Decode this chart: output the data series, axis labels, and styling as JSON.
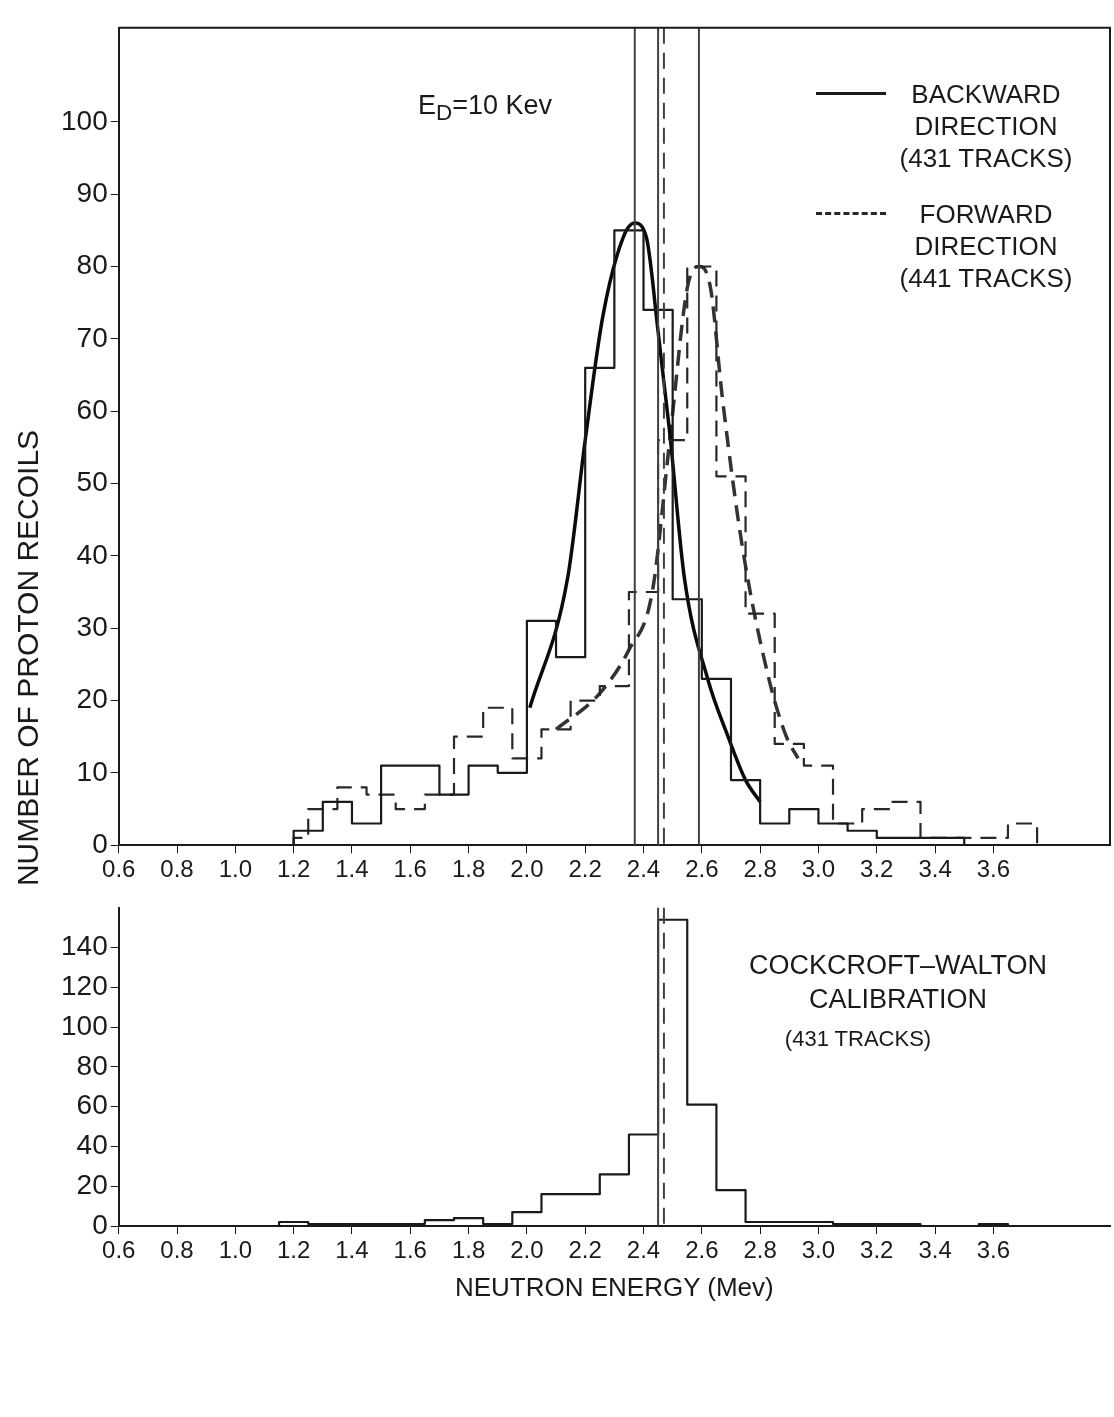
{
  "chart_data": [
    {
      "type": "histogram",
      "ylabel": "NUMBER OF PROTON RECOILS",
      "annotations": [
        "E$_{D}$=10 Kev"
      ],
      "bins": [
        1.2,
        1.25,
        1.3,
        1.35,
        1.4,
        1.45,
        1.5,
        1.55,
        1.6,
        1.65,
        1.7,
        1.75,
        1.8,
        1.85,
        1.9,
        1.95,
        2.0,
        2.05,
        2.1,
        2.15,
        2.2,
        2.25,
        2.3,
        2.35,
        2.4,
        2.45,
        2.5,
        2.55,
        2.6,
        2.65,
        2.7,
        2.75,
        2.8,
        2.85,
        2.9,
        2.95,
        3.0,
        3.05,
        3.1,
        3.15,
        3.2,
        3.25,
        3.3,
        3.35,
        3.4,
        3.45,
        3.5,
        3.55,
        3.6,
        3.65,
        3.7,
        3.75
      ],
      "xlim": [
        0.6,
        4.0
      ],
      "xticks": [
        0.6,
        0.8,
        {
          "value": 1,
          "label": "1.0"
        },
        1.2,
        1.4,
        1.6,
        1.8,
        {
          "value": 2,
          "label": "2.0"
        },
        2.2,
        2.4,
        2.6,
        2.8,
        {
          "value": 3,
          "label": "3.0"
        },
        3.2,
        3.4,
        3.6
      ],
      "ylim": [
        0,
        113
      ],
      "yticks": [
        0,
        10,
        20,
        30,
        40,
        50,
        60,
        70,
        80,
        90,
        100
      ],
      "grid": false,
      "legend": "top right",
      "ref_lines": [
        {
          "axis": "x",
          "value": 2.37,
          "color": "#404040"
        },
        {
          "axis": "x",
          "value": 2.45,
          "color": "#404040"
        },
        {
          "axis": "x",
          "value": 2.47,
          "color": "#404040",
          "line_style": "dashed"
        },
        {
          "axis": "x",
          "value": 2.59,
          "color": "#404040"
        }
      ],
      "series": [
        {
          "name": "BACKWARD DIRECTION (431 TRACKS)",
          "color": "#1a1a1a",
          "line_style": "solid",
          "values": [
            2,
            2,
            6,
            6,
            3,
            3,
            11,
            11,
            11,
            11,
            7,
            7,
            11,
            11,
            10,
            10,
            31,
            31,
            26,
            26,
            66,
            66,
            85,
            85,
            74,
            74,
            34,
            34,
            23,
            23,
            9,
            9,
            3,
            3,
            5,
            5,
            3,
            3,
            2,
            2,
            1,
            1,
            1,
            1,
            1,
            1,
            0,
            0,
            0,
            0,
            0
          ]
        },
        {
          "name": "FORWARD DIRECTION (441 TRACKS)",
          "color": "#282828",
          "line_style": "dashed",
          "values": [
            1,
            5,
            5,
            8,
            8,
            7,
            7,
            5,
            5,
            7,
            7,
            15,
            15,
            19,
            19,
            12,
            12,
            16,
            16,
            20,
            20,
            22,
            22,
            35,
            35,
            56,
            56,
            80,
            80,
            51,
            51,
            32,
            32,
            14,
            14,
            11,
            11,
            3,
            3,
            5,
            5,
            6,
            6,
            1,
            1,
            1,
            1,
            1,
            1,
            3,
            3
          ]
        },
        {
          "type": "line",
          "color": "#0a0a0a",
          "line_style": "solid",
          "x": [
            2.01,
            2.14,
            2.2,
            2.26,
            2.33,
            2.37,
            2.41,
            2.45,
            2.49,
            2.54,
            2.62,
            2.69,
            2.75,
            2.8
          ],
          "values": [
            19,
            37,
            56,
            73,
            84,
            86,
            84,
            71,
            57,
            37,
            23,
            15,
            9,
            6
          ]
        },
        {
          "type": "line",
          "color": "#333333",
          "line_style": "dashed",
          "x": [
            2.1,
            2.25,
            2.35,
            2.43,
            2.49,
            2.55,
            2.59,
            2.63,
            2.67,
            2.74,
            2.83,
            2.89,
            2.93
          ],
          "values": [
            16,
            21,
            27,
            35,
            56,
            77,
            80,
            77,
            62,
            41,
            23,
            15,
            12
          ]
        }
      ]
    },
    {
      "type": "histogram",
      "xlabel": "NEUTRON ENERGY (Mev)",
      "annotations": [
        "COCKCROFT–WALTON CALIBRATION",
        "(431 TRACKS)"
      ],
      "bins": [
        1.15,
        1.25,
        1.35,
        1.45,
        1.55,
        1.65,
        1.75,
        1.85,
        1.95,
        2.05,
        2.15,
        2.25,
        2.35,
        2.45,
        2.55,
        2.65,
        2.75,
        2.85,
        2.95,
        3.05,
        3.15,
        3.25,
        3.35,
        3.45,
        3.55,
        3.65
      ],
      "values": [
        2,
        1,
        1,
        1,
        1,
        3,
        4,
        1,
        7,
        16,
        16,
        26,
        46,
        154,
        61,
        18,
        2,
        2,
        2,
        1,
        1,
        1,
        0,
        0,
        1
      ],
      "color": "#1a1a1a",
      "line_style": "solid",
      "grid": false,
      "xlim": [
        0.6,
        4.0
      ],
      "xticks": [
        0.6,
        0.8,
        {
          "value": 1,
          "label": "1.0"
        },
        1.2,
        1.4,
        1.6,
        1.8,
        {
          "value": 2,
          "label": "2.0"
        },
        2.2,
        2.4,
        2.6,
        2.8,
        {
          "value": 3,
          "label": "3.0"
        },
        3.2,
        3.4,
        3.6
      ],
      "ylim": [
        0,
        160
      ],
      "yticks": [
        0,
        20,
        40,
        60,
        80,
        100,
        120,
        140
      ],
      "ref_lines": [
        {
          "axis": "x",
          "value": 2.45,
          "color": "#404040"
        },
        {
          "axis": "x",
          "value": 2.47,
          "color": "#404040",
          "line_style": "dashed"
        }
      ]
    }
  ]
}
